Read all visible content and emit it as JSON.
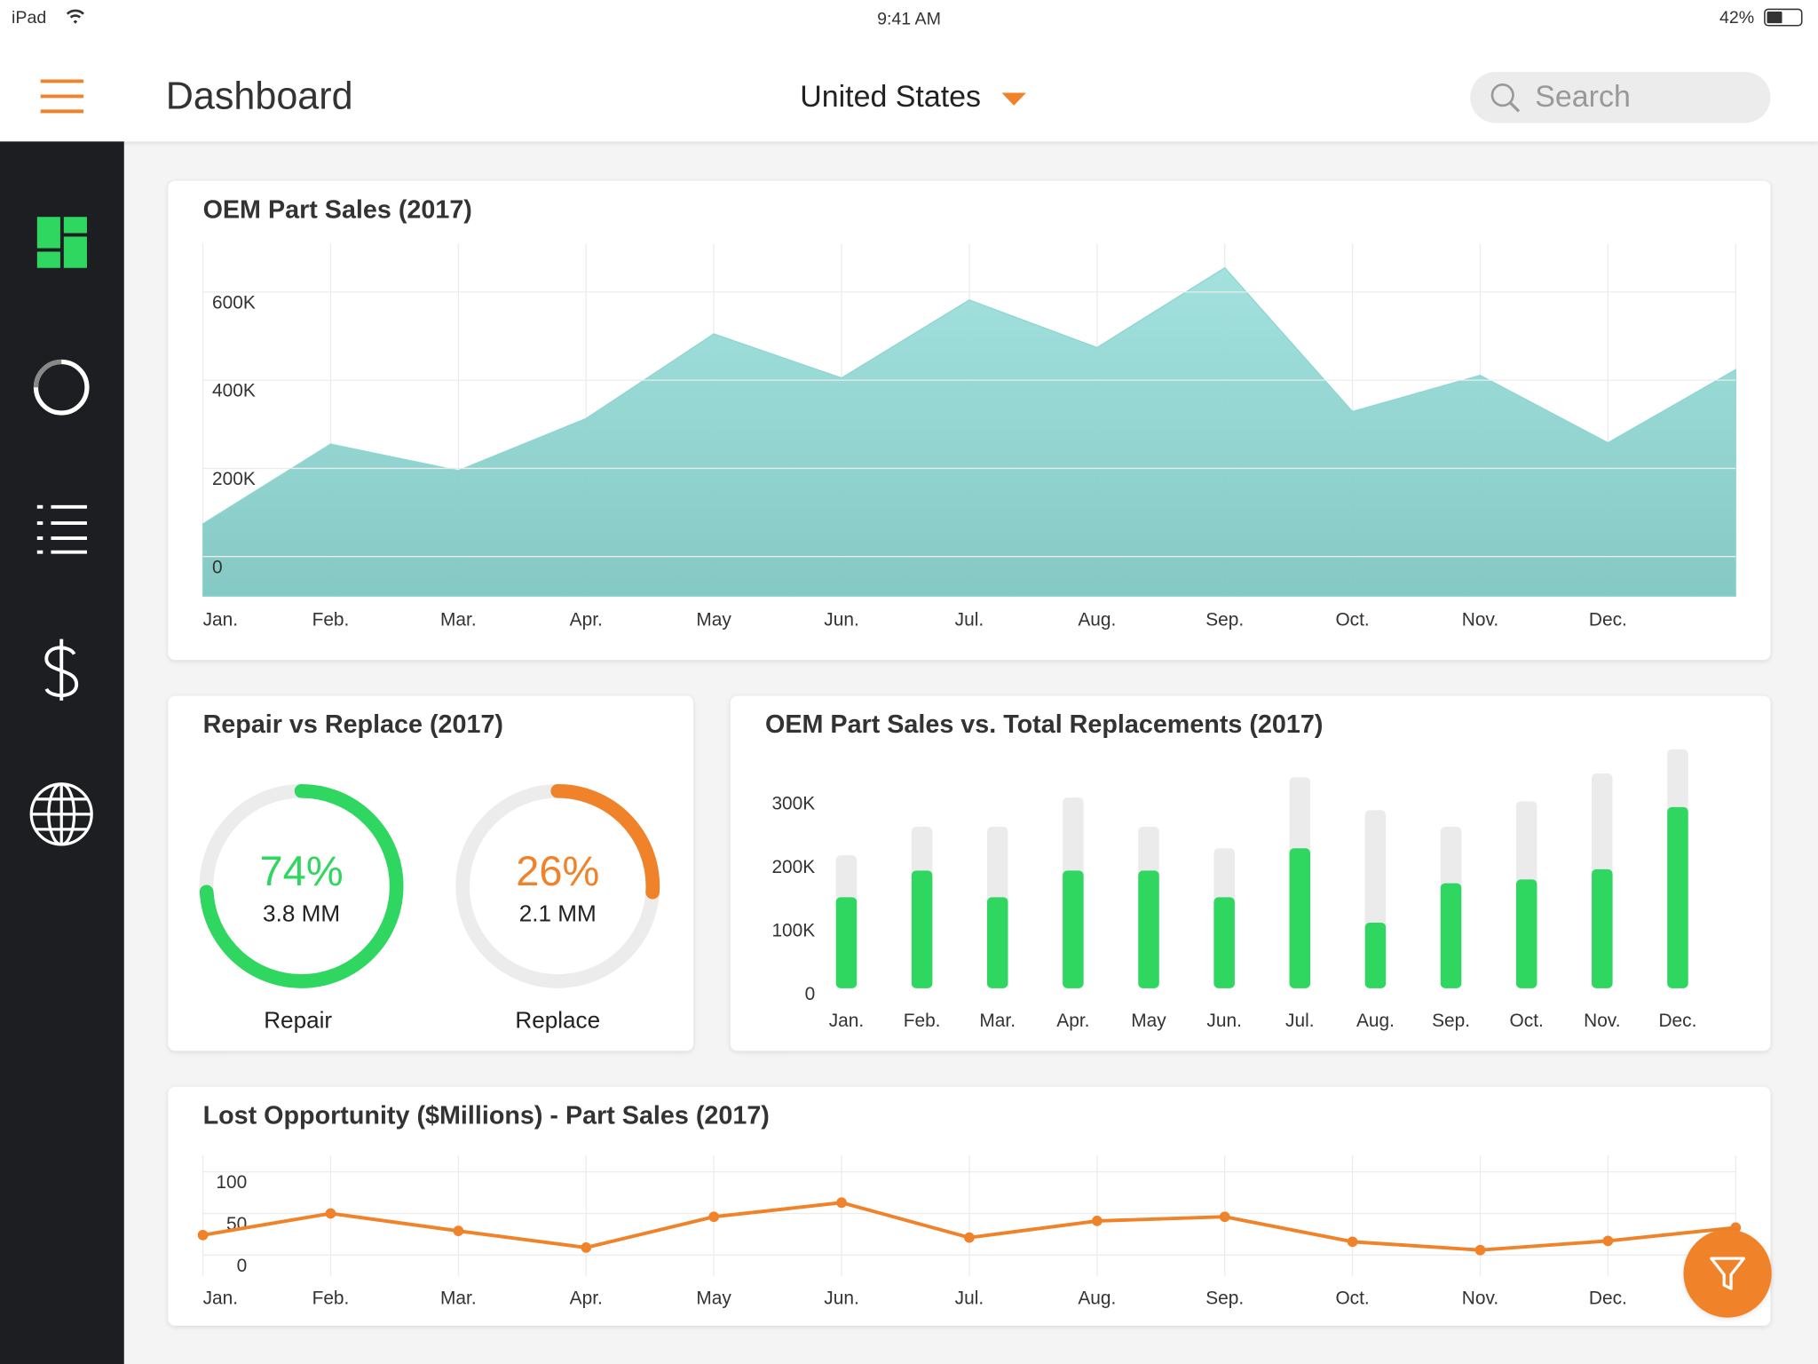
{
  "status_bar": {
    "device": "iPad",
    "time": "9:41 AM",
    "battery": "42%"
  },
  "header": {
    "title": "Dashboard",
    "region": "United States",
    "search_placeholder": "Search"
  },
  "chart_data": [
    {
      "type": "area",
      "title": "OEM Part Sales (2017)",
      "categories": [
        "Jan.",
        "Feb.",
        "Mar.",
        "Apr.",
        "May",
        "Jun.",
        "Jul.",
        "Aug.",
        "Sep.",
        "Oct.",
        "Nov.",
        "Dec.",
        null
      ],
      "values": [
        74000,
        255000,
        195000,
        313000,
        505000,
        405000,
        582000,
        474000,
        655000,
        329000,
        411000,
        258000,
        424000
      ],
      "color": "#8dd6d2",
      "ylim": [
        -90000,
        710000
      ],
      "yticks": [
        0,
        {
          "value": 200000,
          "label": "200K"
        },
        {
          "value": 400000,
          "label": "400K"
        },
        {
          "value": 600000,
          "label": "600K"
        }
      ],
      "grid": true
    },
    {
      "type": "donut",
      "title": "Repair vs Replace (2017)",
      "categories": [
        "Repair",
        "Replace"
      ],
      "values": [
        74,
        26
      ],
      "value_labels": [
        "74%",
        "26%"
      ],
      "amounts": [
        "3.8 MM",
        "2.1 MM"
      ],
      "colors": [
        "#2fd65f",
        "#f0822a"
      ]
    },
    {
      "type": "bar",
      "title": "OEM Part Sales vs. Total Replacements (2017)",
      "categories": [
        "Jan.",
        "Feb.",
        "Mar.",
        "Apr.",
        "May",
        "Jun.",
        "Jul.",
        "Aug.",
        "Sep.",
        "Oct.",
        "Nov.",
        "Dec."
      ],
      "series": [
        {
          "color": "#ebebeb",
          "values": [
            202000,
            247000,
            247000,
            293000,
            247000,
            213000,
            325000,
            273000,
            247000,
            287000,
            331000,
            369000
          ]
        },
        {
          "color": "#2fd65f",
          "values": [
            136000,
            178000,
            136000,
            178000,
            178000,
            136000,
            213000,
            96000,
            158000,
            164000,
            180000,
            278000
          ]
        }
      ],
      "ylim": [
        0,
        380000
      ],
      "yticks": [
        0,
        {
          "value": 100000,
          "label": "100K"
        },
        {
          "value": 200000,
          "label": "200K"
        },
        {
          "value": 300000,
          "label": "300K"
        }
      ]
    },
    {
      "type": "line",
      "title": "Lost Opportunity ($Millions) - Part Sales (2017)",
      "categories": [
        "Jan.",
        "Feb.",
        "Mar.",
        "Apr.",
        "May",
        "Jun.",
        "Jul.",
        "Aug.",
        "Sep.",
        "Oct.",
        "Nov.",
        "Dec.",
        null
      ],
      "values": [
        24,
        50,
        29,
        9,
        46,
        63,
        21,
        41,
        46,
        16,
        6,
        17,
        33
      ],
      "color": "#f0822a",
      "ylim": [
        -25,
        120
      ],
      "yticks": [
        0,
        50,
        100
      ],
      "grid": true
    }
  ]
}
